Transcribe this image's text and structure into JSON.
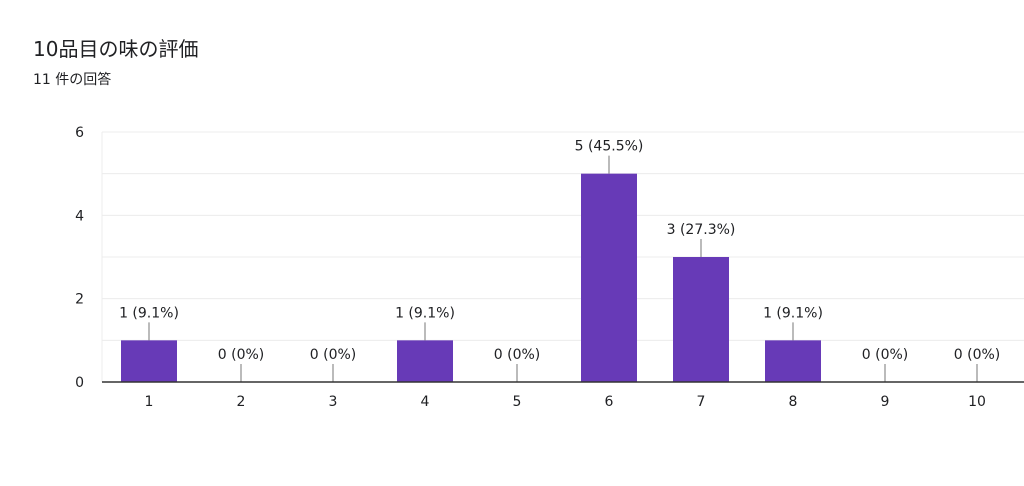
{
  "header": {
    "title": "10品目の味の評価",
    "subtitle": "11 件の回答"
  },
  "colors": {
    "bar": "#673ab7",
    "grid": "#ececec",
    "axis": "#333333",
    "text": "#202124"
  },
  "chart_data": {
    "type": "bar",
    "title": "10品目の味の評価",
    "subtitle": "11 件の回答",
    "categories": [
      "1",
      "2",
      "3",
      "4",
      "5",
      "6",
      "7",
      "8",
      "9",
      "10"
    ],
    "values": [
      1,
      0,
      0,
      1,
      0,
      5,
      3,
      1,
      0,
      0
    ],
    "data_labels": [
      "1 (9.1%)",
      "0 (0%)",
      "0 (0%)",
      "1 (9.1%)",
      "0 (0%)",
      "5 (45.5%)",
      "3 (27.3%)",
      "1 (9.1%)",
      "0 (0%)",
      "0 (0%)"
    ],
    "y_ticks": [
      "0",
      "2",
      "4",
      "6"
    ],
    "ylim": [
      0,
      6
    ],
    "grid": true,
    "xlabel": "",
    "ylabel": ""
  }
}
